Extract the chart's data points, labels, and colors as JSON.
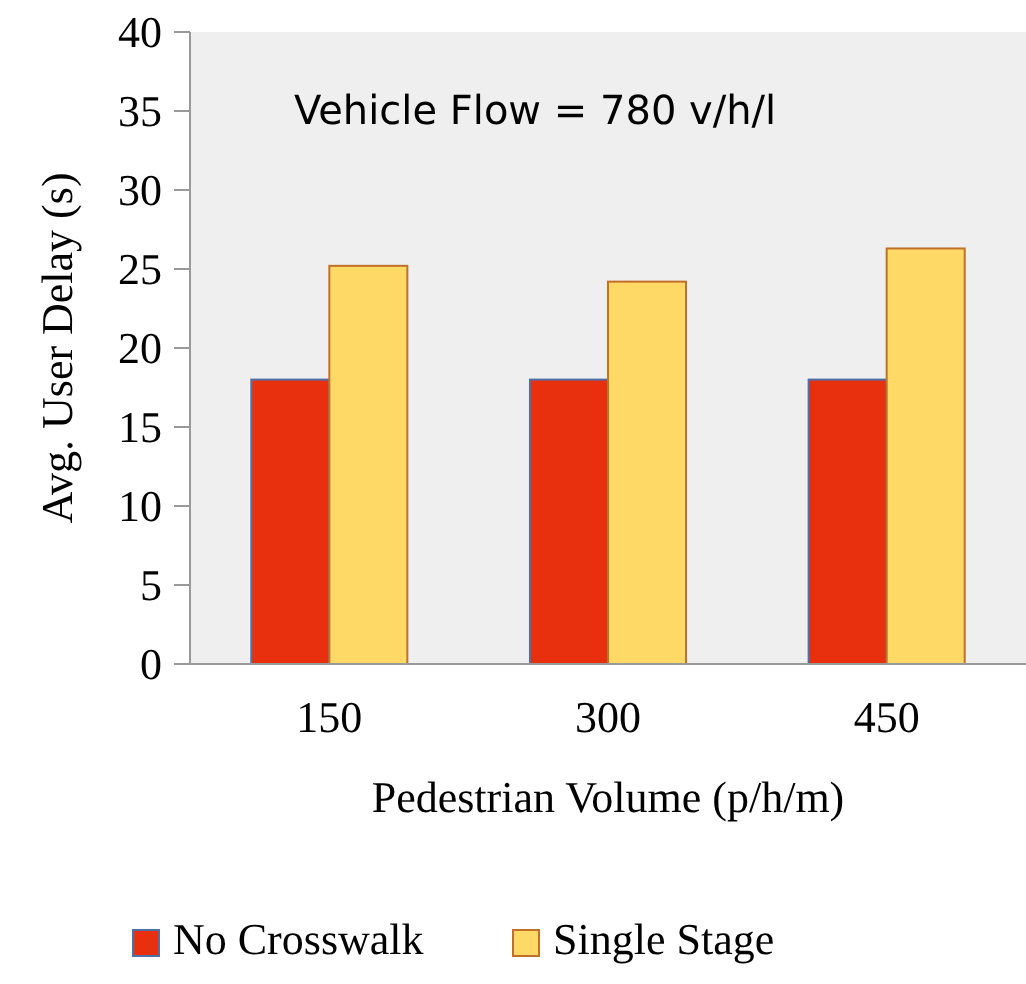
{
  "chart_data": {
    "type": "bar",
    "categories": [
      "150",
      "300",
      "450"
    ],
    "series": [
      {
        "name": "No Crosswalk",
        "color": "#e8300f",
        "values": [
          18,
          18,
          18
        ]
      },
      {
        "name": "Single Stage",
        "color": "#ffd966",
        "values": [
          25.2,
          24.2,
          26.3
        ]
      }
    ],
    "xlabel": "Pedestrian Volume (p/h/m)",
    "ylabel": "Avg. User Delay (s)",
    "ylim": [
      0,
      40
    ],
    "yticks": [
      0,
      5,
      10,
      15,
      20,
      25,
      30,
      35,
      40
    ],
    "annotations": [
      "Vehicle Flow = 780 v/h/l"
    ],
    "legend": "bottom",
    "grid": false
  }
}
